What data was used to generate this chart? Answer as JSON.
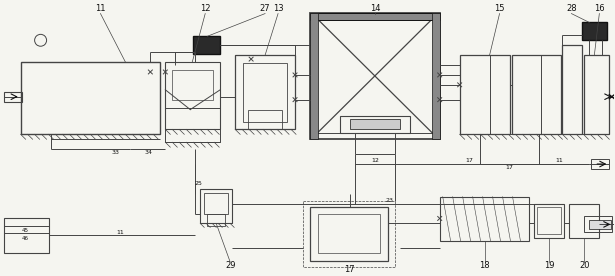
{
  "bg_color": "#f5f5f0",
  "line_color": "#444444",
  "dark_color": "#111111",
  "fig_width": 6.15,
  "fig_height": 2.76,
  "dpi": 100
}
